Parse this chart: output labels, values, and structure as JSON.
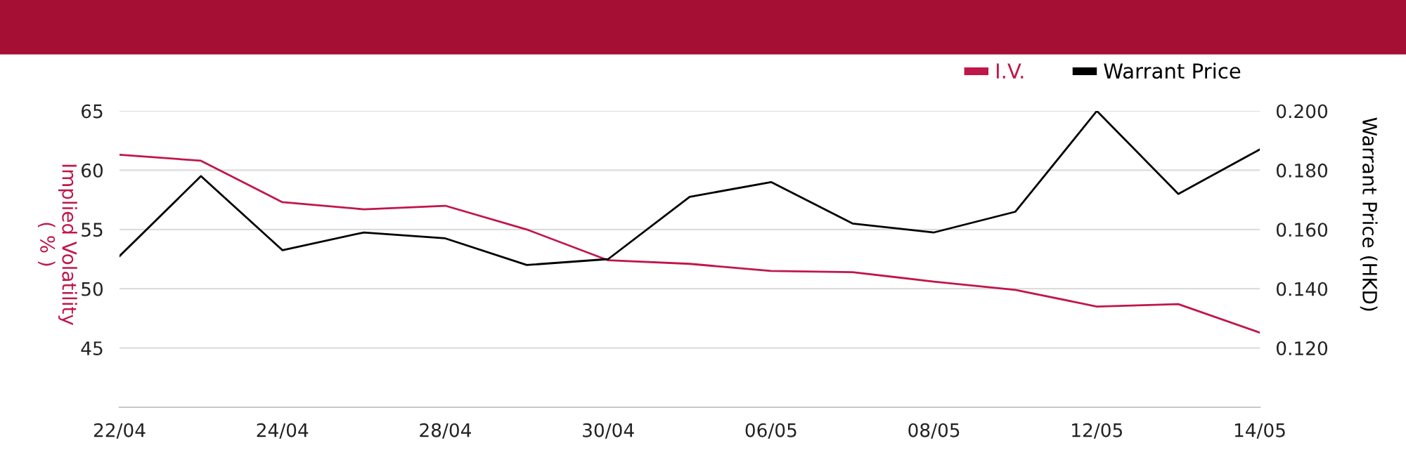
{
  "chart_data": {
    "type": "line",
    "categories": [
      "22/04",
      null,
      "24/04",
      null,
      "28/04",
      null,
      "30/04",
      null,
      "06/05",
      null,
      "08/05",
      null,
      "12/05",
      null,
      "14/05"
    ],
    "series": [
      {
        "name": "I.V.",
        "color": "#c0174a",
        "values": [
          61.3,
          60.8,
          57.3,
          56.7,
          57.0,
          55.0,
          52.4,
          52.1,
          51.5,
          51.4,
          50.6,
          49.9,
          48.5,
          48.7,
          46.3
        ]
      },
      {
        "name": "Warrant Price",
        "color": "#000000",
        "axis": "y2",
        "values": [
          0.151,
          0.178,
          0.153,
          0.159,
          0.157,
          0.148,
          0.15,
          0.171,
          0.176,
          0.162,
          0.159,
          0.166,
          0.2,
          0.172,
          0.187
        ]
      }
    ],
    "ylabel": "Implied Volatility\n( % )",
    "y2label": "Warrant Price (HKD)",
    "ylim": [
      40,
      65
    ],
    "yticks": [
      45,
      50,
      55,
      60,
      65
    ],
    "y2lim": [
      0.1,
      0.2
    ],
    "y2ticks": [
      {
        "value": 0.12,
        "label": "0.120"
      },
      {
        "value": 0.14,
        "label": "0.140"
      },
      {
        "value": 0.16,
        "label": "0.160"
      },
      {
        "value": 0.18,
        "label": "0.180"
      },
      {
        "value": 0.2,
        "label": "0.200"
      }
    ],
    "grid": "y",
    "legend": "top right",
    "marker": "none",
    "line_style": "solid"
  }
}
